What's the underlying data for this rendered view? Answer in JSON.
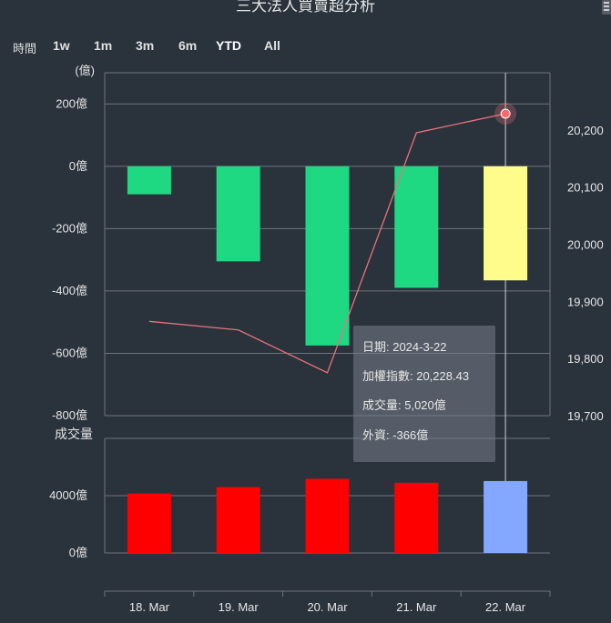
{
  "title": "三大法人買賣超分析",
  "range_selector": {
    "label": "時間",
    "buttons": [
      "1w",
      "1m",
      "3m",
      "6m",
      "YTD",
      "All"
    ],
    "active": "YTD"
  },
  "tooltip": {
    "date": "日期: 2024-3-22",
    "index": "加權指數: 20,228.43",
    "volume": "成交量: 5,020億",
    "foreign": "外資: -366億"
  },
  "colors": {
    "background": "#2a323c",
    "net_bar": "#1fd882",
    "net_bar_highlight": "#fffc8c",
    "volume_bar": "#ff0000",
    "volume_bar_highlight": "#84a8ff",
    "index_line": "#e8727a",
    "grid": "#6e747b"
  },
  "chart_data": [
    {
      "type": "bar",
      "categories": [
        "18. Mar",
        "19. Mar",
        "20. Mar",
        "21. Mar",
        "22. Mar"
      ],
      "series": [
        {
          "values": [
            -90,
            -305,
            -575,
            -390,
            -366
          ]
        }
      ],
      "ylabel": "(億)",
      "ylim": [
        -800,
        300
      ],
      "yticks": [
        200,
        0,
        -200,
        -400,
        -600,
        -800
      ],
      "ytick_labels": [
        "200億",
        "0億",
        "-200億",
        "-400億",
        "-600億",
        "-800億"
      ],
      "grid": true
    },
    {
      "type": "line",
      "categories": [
        "18. Mar",
        "19. Mar",
        "20. Mar",
        "21. Mar",
        "22. Mar"
      ],
      "series": [
        {
          "values": [
            19865,
            19850,
            19775,
            20195,
            20228.43
          ]
        }
      ],
      "ylim": [
        19700,
        20300
      ],
      "yticks": [
        20200,
        20100,
        20000,
        19900,
        19800,
        19700
      ],
      "ytick_labels": [
        "20,200",
        "20,100",
        "20,000",
        "19,900",
        "19,800",
        "19,700"
      ],
      "axis": "right"
    },
    {
      "type": "bar",
      "categories": [
        "18. Mar",
        "19. Mar",
        "20. Mar",
        "21. Mar",
        "22. Mar"
      ],
      "series": [
        {
          "values": [
            4150,
            4600,
            5180,
            4900,
            5020
          ]
        }
      ],
      "ylabel": "成交量",
      "ylim": [
        0,
        8000
      ],
      "yticks": [
        4000,
        0
      ],
      "ytick_labels": [
        "4000億",
        "0億"
      ],
      "grid": true
    }
  ]
}
